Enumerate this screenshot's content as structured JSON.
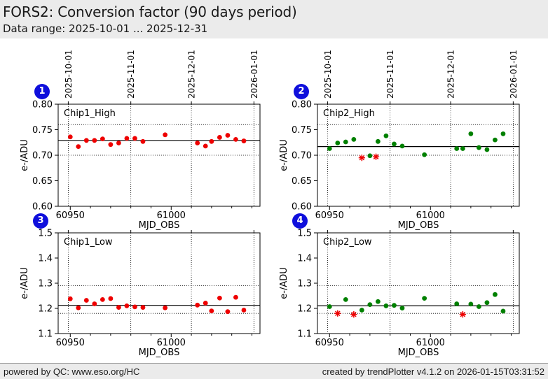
{
  "header": {
    "title": "FORS2: Conversion factor (90 days period)",
    "subtitle": "Data range: 2025-10-01 ... 2025-12-31"
  },
  "footer": {
    "left": "powered by QC: www.eso.org/HC",
    "right": "created by trendPlotter v4.1.2 on 2026-01-15T03:31:52"
  },
  "colors": {
    "red": "#ee0000",
    "green": "#008000",
    "outlier_red": "#ee0000",
    "badge_blue": "#0f0fdc",
    "frame": "#000000",
    "band_bg": "#ebebeb",
    "plot_bg": "#ffffff"
  },
  "axes": {
    "xlabel": "MJD_OBS",
    "ylabel": "e-/ADU",
    "xlim": [
      60944,
      61044
    ],
    "x_major_ticks": [
      "60950",
      "61000"
    ],
    "x_minor_ticks": [
      60960,
      60970,
      60980,
      60990,
      61010,
      61020,
      61030,
      61040
    ],
    "date_marks": [
      {
        "mjd": 60949,
        "label": "2025-10-01"
      },
      {
        "mjd": 60980,
        "label": "2025-11-01"
      },
      {
        "mjd": 61010,
        "label": "2025-12-01"
      },
      {
        "mjd": 61041,
        "label": "2026-01-01"
      }
    ]
  },
  "chart_data": [
    {
      "id": "1",
      "type": "scatter",
      "label": "Chip1_High",
      "marker": "circle",
      "marker_color": "#ee0000",
      "ylim": [
        0.6,
        0.8
      ],
      "yticks": [
        "0.80",
        "0.75",
        "0.70",
        "0.65",
        "0.60"
      ],
      "center_line": 0.729,
      "limit_lines": [
        0.76,
        0.7
      ],
      "points": {
        "mjd": [
          60950,
          60954,
          60958,
          60962,
          60966,
          60970,
          60974,
          60978,
          60982,
          60986,
          60997,
          61013,
          61017,
          61020,
          61024,
          61028,
          61032,
          61036
        ],
        "value": [
          0.736,
          0.717,
          0.729,
          0.729,
          0.732,
          0.721,
          0.724,
          0.733,
          0.733,
          0.727,
          0.74,
          0.724,
          0.718,
          0.727,
          0.735,
          0.739,
          0.731,
          0.728
        ]
      },
      "outliers": {
        "mjd": [],
        "value": []
      }
    },
    {
      "id": "2",
      "type": "scatter",
      "label": "Chip2_High",
      "marker": "circle",
      "marker_color": "#008000",
      "ylim": [
        0.6,
        0.8
      ],
      "yticks": [
        "0.80",
        "0.75",
        "0.70",
        "0.65",
        "0.60"
      ],
      "center_line": 0.717,
      "limit_lines": [
        0.76,
        0.7
      ],
      "points": {
        "mjd": [
          60950,
          60954,
          60958,
          60962,
          60970,
          60974,
          60978,
          60982,
          60986,
          60997,
          61013,
          61016,
          61020,
          61024,
          61028,
          61032,
          61036
        ],
        "value": [
          0.713,
          0.724,
          0.726,
          0.731,
          0.699,
          0.727,
          0.738,
          0.722,
          0.718,
          0.701,
          0.713,
          0.713,
          0.742,
          0.715,
          0.711,
          0.73,
          0.742
        ]
      },
      "outliers": {
        "mjd": [
          60966,
          60973
        ],
        "value": [
          0.695,
          0.697
        ]
      }
    },
    {
      "id": "3",
      "type": "scatter",
      "label": "Chip1_Low",
      "marker": "circle",
      "marker_color": "#ee0000",
      "ylim": [
        1.1,
        1.5
      ],
      "yticks": [
        "1.5",
        "1.4",
        "1.3",
        "1.2",
        "1.1"
      ],
      "center_line": 1.212,
      "limit_lines": [
        1.29,
        1.18
      ],
      "points": {
        "mjd": [
          60950,
          60954,
          60958,
          60962,
          60966,
          60970,
          60974,
          60978,
          60982,
          60986,
          60997,
          61013,
          61017,
          61020,
          61024,
          61028,
          61032,
          61036
        ],
        "value": [
          1.238,
          1.202,
          1.232,
          1.218,
          1.235,
          1.239,
          1.204,
          1.21,
          1.206,
          1.204,
          1.202,
          1.213,
          1.221,
          1.19,
          1.241,
          1.187,
          1.244,
          1.193
        ]
      },
      "outliers": {
        "mjd": [],
        "value": []
      }
    },
    {
      "id": "4",
      "type": "scatter",
      "label": "Chip2_Low",
      "marker": "circle",
      "marker_color": "#008000",
      "ylim": [
        1.1,
        1.5
      ],
      "yticks": [
        "1.5",
        "1.4",
        "1.3",
        "1.2",
        "1.1"
      ],
      "center_line": 1.21,
      "limit_lines": [
        1.29,
        1.18
      ],
      "points": {
        "mjd": [
          60950,
          60958,
          60966,
          60970,
          60974,
          60978,
          60982,
          60986,
          60997,
          61013,
          61020,
          61024,
          61028,
          61032,
          61036
        ],
        "value": [
          1.207,
          1.235,
          1.193,
          1.215,
          1.227,
          1.21,
          1.212,
          1.201,
          1.24,
          1.218,
          1.217,
          1.207,
          1.223,
          1.255,
          1.189
        ]
      },
      "outliers": {
        "mjd": [
          60954,
          60962,
          61016
        ],
        "value": [
          1.18,
          1.176,
          1.176
        ]
      }
    }
  ]
}
